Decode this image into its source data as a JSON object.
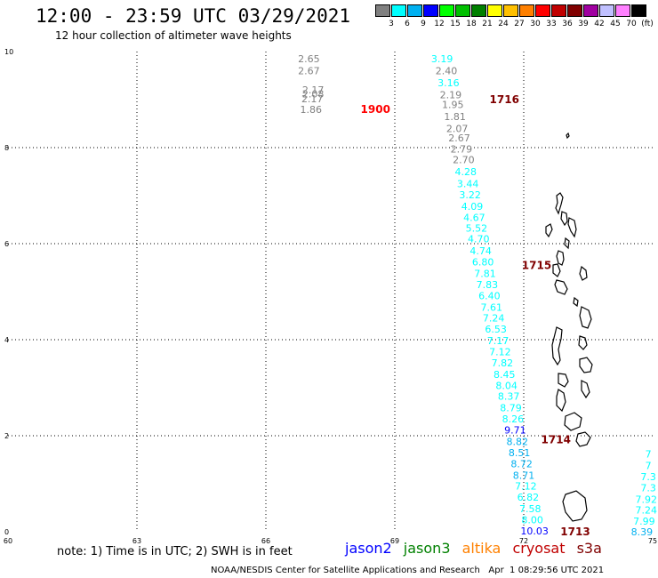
{
  "header": {
    "title": "12:00 - 23:59 UTC 03/29/2021",
    "subtitle": "12 hour collection of altimeter wave heights"
  },
  "legend": {
    "colors": [
      "#808080",
      "#00ffff",
      "#00b0f0",
      "#0000ff",
      "#00ff00",
      "#00c000",
      "#008000",
      "#ffff00",
      "#ffc000",
      "#ff8000",
      "#ff0000",
      "#c00000",
      "#800000",
      "#a000a0",
      "#c0c0ff",
      "#ff80ff",
      "#000000"
    ],
    "labels": [
      "3",
      "6",
      "9",
      "12",
      "15",
      "18",
      "21",
      "24",
      "27",
      "30",
      "33",
      "36",
      "39",
      "42",
      "45",
      "70",
      "(ft)"
    ]
  },
  "chart_data": {
    "type": "scatter",
    "xlim": [
      60,
      75
    ],
    "ylim": [
      0,
      10
    ],
    "x_ticks": [
      "60",
      "63",
      "66",
      "69",
      "72",
      "75"
    ],
    "y_ticks": [
      "0",
      "2",
      "4",
      "6",
      "8",
      "10"
    ],
    "swh_points": [
      {
        "lon": 67.0,
        "lat": 9.85,
        "v": "2.65",
        "c": "#808080"
      },
      {
        "lon": 67.0,
        "lat": 9.6,
        "v": "2.67",
        "c": "#808080"
      },
      {
        "lon": 67.1,
        "lat": 9.2,
        "v": "2.17",
        "c": "#808080"
      },
      {
        "lon": 67.1,
        "lat": 9.12,
        "v": "2.08",
        "c": "#808080"
      },
      {
        "lon": 67.08,
        "lat": 9.02,
        "v": "2.17",
        "c": "#808080"
      },
      {
        "lon": 67.05,
        "lat": 8.8,
        "v": "1.86",
        "c": "#808080"
      },
      {
        "lon": 70.1,
        "lat": 9.85,
        "v": "3.19",
        "c": "#00ffff"
      },
      {
        "lon": 70.2,
        "lat": 9.6,
        "v": "2.40",
        "c": "#808080"
      },
      {
        "lon": 70.25,
        "lat": 9.35,
        "v": "3.16",
        "c": "#00ffff"
      },
      {
        "lon": 70.3,
        "lat": 9.1,
        "v": "2.19",
        "c": "#808080"
      },
      {
        "lon": 70.35,
        "lat": 8.9,
        "v": "1.95",
        "c": "#808080"
      },
      {
        "lon": 70.4,
        "lat": 8.65,
        "v": "1.81",
        "c": "#808080"
      },
      {
        "lon": 70.45,
        "lat": 8.4,
        "v": "2.07",
        "c": "#808080"
      },
      {
        "lon": 70.5,
        "lat": 8.2,
        "v": "2.67",
        "c": "#808080"
      },
      {
        "lon": 70.55,
        "lat": 7.97,
        "v": "2.79",
        "c": "#808080"
      },
      {
        "lon": 70.6,
        "lat": 7.75,
        "v": "2.70",
        "c": "#808080"
      },
      {
        "lon": 70.65,
        "lat": 7.5,
        "v": "4.28",
        "c": "#00ffff"
      },
      {
        "lon": 70.7,
        "lat": 7.25,
        "v": "3.44",
        "c": "#00ffff"
      },
      {
        "lon": 70.75,
        "lat": 7.02,
        "v": "3.22",
        "c": "#00ffff"
      },
      {
        "lon": 70.8,
        "lat": 6.78,
        "v": "4.09",
        "c": "#00ffff"
      },
      {
        "lon": 70.85,
        "lat": 6.55,
        "v": "4.67",
        "c": "#00ffff"
      },
      {
        "lon": 70.9,
        "lat": 6.32,
        "v": "5.52",
        "c": "#00ffff"
      },
      {
        "lon": 70.95,
        "lat": 6.1,
        "v": "4.70",
        "c": "#00ffff"
      },
      {
        "lon": 71.0,
        "lat": 5.85,
        "v": "4.74",
        "c": "#00ffff"
      },
      {
        "lon": 71.05,
        "lat": 5.62,
        "v": "6.80",
        "c": "#00ffff"
      },
      {
        "lon": 71.1,
        "lat": 5.38,
        "v": "7.81",
        "c": "#00ffff"
      },
      {
        "lon": 71.15,
        "lat": 5.15,
        "v": "7.83",
        "c": "#00ffff"
      },
      {
        "lon": 71.2,
        "lat": 4.92,
        "v": "6.40",
        "c": "#00ffff"
      },
      {
        "lon": 71.25,
        "lat": 4.68,
        "v": "7.61",
        "c": "#00ffff"
      },
      {
        "lon": 71.3,
        "lat": 4.45,
        "v": "7.24",
        "c": "#00ffff"
      },
      {
        "lon": 71.35,
        "lat": 4.22,
        "v": "6.53",
        "c": "#00ffff"
      },
      {
        "lon": 71.4,
        "lat": 3.98,
        "v": "7.17",
        "c": "#00ffff"
      },
      {
        "lon": 71.45,
        "lat": 3.75,
        "v": "7.12",
        "c": "#00ffff"
      },
      {
        "lon": 71.5,
        "lat": 3.52,
        "v": "7.82",
        "c": "#00ffff"
      },
      {
        "lon": 71.55,
        "lat": 3.28,
        "v": "8.45",
        "c": "#00ffff"
      },
      {
        "lon": 71.6,
        "lat": 3.05,
        "v": "8.04",
        "c": "#00ffff"
      },
      {
        "lon": 71.65,
        "lat": 2.82,
        "v": "8.37",
        "c": "#00ffff"
      },
      {
        "lon": 71.7,
        "lat": 2.58,
        "v": "8.79",
        "c": "#00ffff"
      },
      {
        "lon": 71.75,
        "lat": 2.35,
        "v": "8.26",
        "c": "#00ffff"
      },
      {
        "lon": 71.8,
        "lat": 2.12,
        "v": "9.71",
        "c": "#0000ff"
      },
      {
        "lon": 71.85,
        "lat": 1.88,
        "v": "8.82",
        "c": "#00b0f0"
      },
      {
        "lon": 71.9,
        "lat": 1.65,
        "v": "8.51",
        "c": "#00b0f0"
      },
      {
        "lon": 71.95,
        "lat": 1.42,
        "v": "8.72",
        "c": "#00b0f0"
      },
      {
        "lon": 72.0,
        "lat": 1.18,
        "v": "8.71",
        "c": "#00b0f0"
      },
      {
        "lon": 72.05,
        "lat": 0.95,
        "v": "7.12",
        "c": "#00ffff"
      },
      {
        "lon": 72.1,
        "lat": 0.72,
        "v": "6.82",
        "c": "#00ffff"
      },
      {
        "lon": 72.15,
        "lat": 0.48,
        "v": "7.58",
        "c": "#00ffff"
      },
      {
        "lon": 72.2,
        "lat": 0.25,
        "v": "8.00",
        "c": "#00ffff"
      },
      {
        "lon": 72.25,
        "lat": 0.02,
        "v": "10.03",
        "c": "#0000ff"
      },
      {
        "lon": 74.9,
        "lat": 1.62,
        "v": "7",
        "c": "#00ffff"
      },
      {
        "lon": 74.9,
        "lat": 1.38,
        "v": "7",
        "c": "#00ffff"
      },
      {
        "lon": 74.9,
        "lat": 1.15,
        "v": "7.3",
        "c": "#00ffff"
      },
      {
        "lon": 74.9,
        "lat": 0.92,
        "v": "7.3",
        "c": "#00ffff"
      },
      {
        "lon": 74.85,
        "lat": 0.68,
        "v": "7.92",
        "c": "#00ffff"
      },
      {
        "lon": 74.85,
        "lat": 0.45,
        "v": "7.24",
        "c": "#00ffff"
      },
      {
        "lon": 74.8,
        "lat": 0.22,
        "v": "7.99",
        "c": "#00ffff"
      },
      {
        "lon": 74.75,
        "lat": 0.0,
        "v": "8.39",
        "c": "#00b0f0"
      }
    ],
    "time_labels": [
      {
        "lon": 68.55,
        "lat": 8.8,
        "t": "1900",
        "c": "#ff0000"
      },
      {
        "lon": 71.55,
        "lat": 9.0,
        "t": "1716",
        "c": "#800000"
      },
      {
        "lon": 72.3,
        "lat": 5.55,
        "t": "1715",
        "c": "#800000"
      },
      {
        "lon": 72.75,
        "lat": 1.92,
        "t": "1714",
        "c": "#800000"
      },
      {
        "lon": 73.2,
        "lat": 0.0,
        "t": "1713",
        "c": "#800000"
      }
    ]
  },
  "footer": {
    "note": "note: 1) Time is in UTC; 2) SWH is in feet",
    "satellites": [
      {
        "name": "jason2",
        "color": "#0000ff"
      },
      {
        "name": "jason3",
        "color": "#008000"
      },
      {
        "name": "altika",
        "color": "#ff8000"
      },
      {
        "name": "cryosat",
        "color": "#c00000"
      },
      {
        "name": "s3a",
        "color": "#800000"
      }
    ],
    "credit": "NOAA/NESDIS Center for Satellite Applications and Research   Apr  1 08:29:56 UTC 2021"
  }
}
